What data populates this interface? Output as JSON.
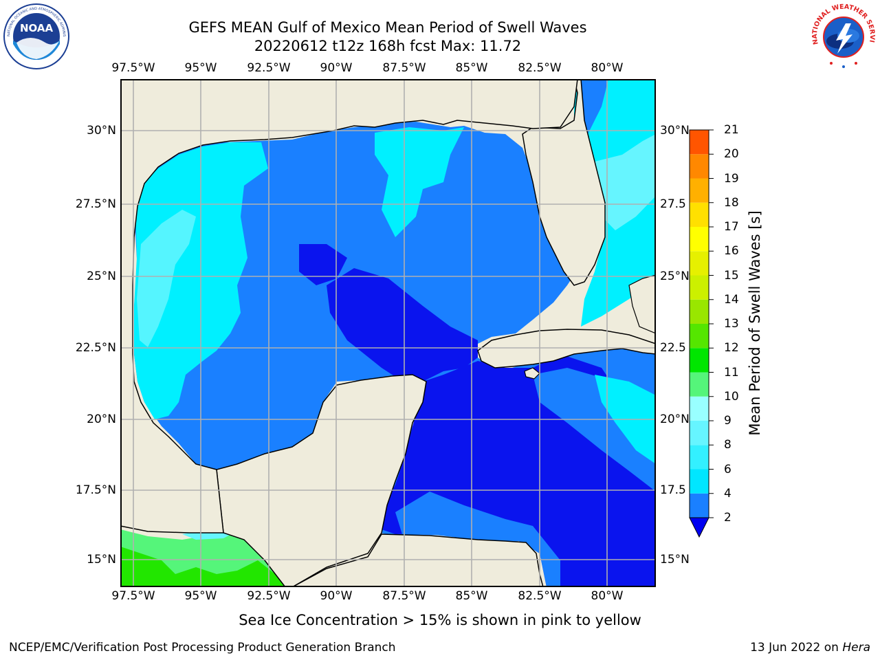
{
  "title": {
    "line1": "GEFS MEAN Gulf of Mexico Mean Period of Swell Waves",
    "line2": "20220612 t12z 168h fcst   Max: 11.72"
  },
  "logos": {
    "left": "NOAA",
    "left_ring_text": "NATIONAL OCEANIC AND ATMOSPHERIC ADMINISTRATION · U.S. DEPARTMENT OF COMMERCE",
    "right_ring_text": "NATIONAL WEATHER SERVICE"
  },
  "map": {
    "region": "Gulf of Mexico",
    "lon_range": [
      -98.0,
      -78.2
    ],
    "lat_range": [
      14.0,
      31.8
    ],
    "longitude_labels": [
      "97.5°W",
      "95°W",
      "92.5°W",
      "90°W",
      "87.5°W",
      "85°W",
      "82.5°W",
      "80°W"
    ],
    "latitude_labels": [
      "30°N",
      "27.5°N",
      "25°N",
      "22.5°N",
      "20°N",
      "17.5°N",
      "15°N"
    ],
    "right_latitude_labels": [
      "30°N",
      "27.5",
      "25°N",
      "22.5",
      "20°N",
      "17.5",
      "15°N"
    ],
    "grid": true,
    "land_color": "#efecdc",
    "ocean_default_color": "#1a80ff"
  },
  "colorbar": {
    "label": "Mean Period of Swell Waves [s]",
    "ticks": [
      "2",
      "4",
      "6",
      "8",
      "9",
      "10",
      "11",
      "12",
      "13",
      "14",
      "15",
      "16",
      "17",
      "18",
      "19",
      "20",
      "21"
    ],
    "extend": "min",
    "under_color": "#0000f0",
    "colors": [
      "#1a80ff",
      "#00e6ff",
      "#33f0ff",
      "#66f5ff",
      "#99ffff",
      "#55f57a",
      "#00e600",
      "#55e600",
      "#99e600",
      "#ccf000",
      "#e6f000",
      "#ffff00",
      "#ffe000",
      "#ffb000",
      "#ff8800",
      "#ff5500",
      "#ff2200",
      "#ff0000"
    ]
  },
  "note": "Sea Ice Concentration > 15% is shown in pink to yellow",
  "footer": {
    "left": "NCEP/EMC/Verification Post Processing Product Generation Branch",
    "date": "13 Jun 2022 on ",
    "host": "Hera"
  }
}
